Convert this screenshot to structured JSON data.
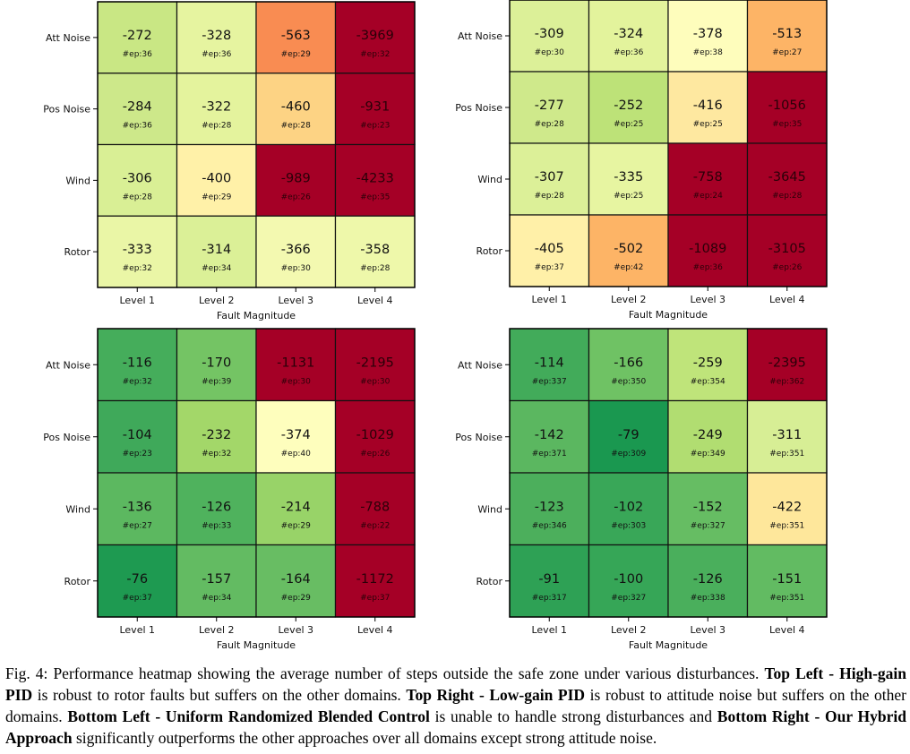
{
  "chart_data": [
    {
      "type": "heatmap",
      "rows": [
        "Att Noise",
        "Pos Noise",
        "Wind",
        "Rotor"
      ],
      "columns": [
        "Level 1",
        "Level 2",
        "Level 3",
        "Level 4"
      ],
      "xlabel": "Fault Magnitude",
      "values": [
        [
          -272,
          -328,
          -563,
          -3969
        ],
        [
          -284,
          -322,
          -460,
          -931
        ],
        [
          -306,
          -400,
          -989,
          -4233
        ],
        [
          -333,
          -314,
          -366,
          -358
        ]
      ],
      "episodes": [
        [
          "#ep:36",
          "#ep:36",
          "#ep:29",
          "#ep:32"
        ],
        [
          "#ep:36",
          "#ep:28",
          "#ep:28",
          "#ep:23"
        ],
        [
          "#ep:28",
          "#ep:29",
          "#ep:26",
          "#ep:35"
        ],
        [
          "#ep:32",
          "#ep:34",
          "#ep:30",
          "#ep:28"
        ]
      ],
      "colors": [
        [
          "#c9e784",
          "#e6f4a0",
          "#f98c52",
          "#a50026"
        ],
        [
          "#cde88a",
          "#e4f39d",
          "#fdd384",
          "#a50026"
        ],
        [
          "#d9ef95",
          "#fff1a8",
          "#a50026",
          "#a50026"
        ],
        [
          "#eaf6a6",
          "#dbf097",
          "#f3f9b0",
          "#eef8aa"
        ]
      ]
    },
    {
      "type": "heatmap",
      "rows": [
        "Att Noise",
        "Pos Noise",
        "Wind",
        "Rotor"
      ],
      "columns": [
        "Level 1",
        "Level 2",
        "Level 3",
        "Level 4"
      ],
      "xlabel": "Fault Magnitude",
      "values": [
        [
          -309,
          -324,
          -378,
          -513
        ],
        [
          -277,
          -252,
          -416,
          -1056
        ],
        [
          -307,
          -335,
          -758,
          -3645
        ],
        [
          -405,
          -502,
          -1089,
          -3105
        ]
      ],
      "episodes": [
        [
          "#ep:30",
          "#ep:36",
          "#ep:38",
          "#ep:27"
        ],
        [
          "#ep:28",
          "#ep:25",
          "#ep:25",
          "#ep:35"
        ],
        [
          "#ep:28",
          "#ep:25",
          "#ep:24",
          "#ep:28"
        ],
        [
          "#ep:37",
          "#ep:42",
          "#ep:36",
          "#ep:26"
        ]
      ],
      "colors": [
        [
          "#dcf098",
          "#e3f39c",
          "#fefdbc",
          "#fdb466"
        ],
        [
          "#cfe98b",
          "#bde278",
          "#fee8a0",
          "#a50026"
        ],
        [
          "#dcf098",
          "#e7f5a1",
          "#a50026",
          "#a50026"
        ],
        [
          "#fff0a8",
          "#fdb466",
          "#a50026",
          "#a50026"
        ]
      ]
    },
    {
      "type": "heatmap",
      "rows": [
        "Att Noise",
        "Pos Noise",
        "Wind",
        "Rotor"
      ],
      "columns": [
        "Level 1",
        "Level 2",
        "Level 3",
        "Level 4"
      ],
      "xlabel": "Fault Magnitude",
      "values": [
        [
          -116,
          -170,
          -1131,
          -2195
        ],
        [
          -104,
          -232,
          -374,
          -1029
        ],
        [
          -136,
          -126,
          -214,
          -788
        ],
        [
          -76,
          -157,
          -164,
          -1172
        ]
      ],
      "episodes": [
        [
          "#ep:32",
          "#ep:39",
          "#ep:30",
          "#ep:30"
        ],
        [
          "#ep:23",
          "#ep:32",
          "#ep:40",
          "#ep:26"
        ],
        [
          "#ep:27",
          "#ep:33",
          "#ep:29",
          "#ep:22"
        ],
        [
          "#ep:37",
          "#ep:34",
          "#ep:29",
          "#ep:37"
        ]
      ],
      "colors": [
        [
          "#45ad5b",
          "#74c464",
          "#a50026",
          "#a50026"
        ],
        [
          "#3fa95a",
          "#a3d769",
          "#fefebd",
          "#a50026"
        ],
        [
          "#5cb860",
          "#4fb25d",
          "#98d368",
          "#a50026"
        ],
        [
          "#1e9a51",
          "#63bb62",
          "#68bd63",
          "#a50026"
        ]
      ]
    },
    {
      "type": "heatmap",
      "rows": [
        "Att Noise",
        "Pos Noise",
        "Wind",
        "Rotor"
      ],
      "columns": [
        "Level 1",
        "Level 2",
        "Level 3",
        "Level 4"
      ],
      "xlabel": "Fault Magnitude",
      "values": [
        [
          -114,
          -166,
          -259,
          -2395
        ],
        [
          -142,
          -79,
          -249,
          -311
        ],
        [
          -123,
          -102,
          -152,
          -422
        ],
        [
          -91,
          -100,
          -126,
          -151
        ]
      ],
      "episodes": [
        [
          "#ep:337",
          "#ep:350",
          "#ep:354",
          "#ep:362"
        ],
        [
          "#ep:371",
          "#ep:309",
          "#ep:349",
          "#ep:351"
        ],
        [
          "#ep:346",
          "#ep:303",
          "#ep:327",
          "#ep:351"
        ],
        [
          "#ep:317",
          "#ep:327",
          "#ep:338",
          "#ep:351"
        ]
      ],
      "colors": [
        [
          "#42ab5a",
          "#6fc264",
          "#bfe47a",
          "#a50026"
        ],
        [
          "#5bb760",
          "#1a9850",
          "#b1dd71",
          "#d7ee95"
        ],
        [
          "#4caf5c",
          "#39a758",
          "#66bd63",
          "#fee79b"
        ],
        [
          "#2ea155",
          "#36a657",
          "#4aaf5c",
          "#62bb62"
        ]
      ]
    }
  ],
  "caption": {
    "prefix": "Fig. 4: Performance heatmap showing the average number of steps outside the safe zone under various disturbances. ",
    "b1": "Top Left - High-gain PID",
    "t1": " is robust to rotor faults but suffers on the other domains. ",
    "b2": "Top Right - Low-gain PID",
    "t2": " is robust to attitude noise but suffers on the other domains. ",
    "b3": "Bottom Left - Uniform Randomized Blended Control",
    "t3": " is unable to handle strong disturbances and ",
    "b4": "Bottom Right - Our Hybrid Approach",
    "t4": " significantly outperforms the other approaches over all domains except strong attitude noise."
  }
}
